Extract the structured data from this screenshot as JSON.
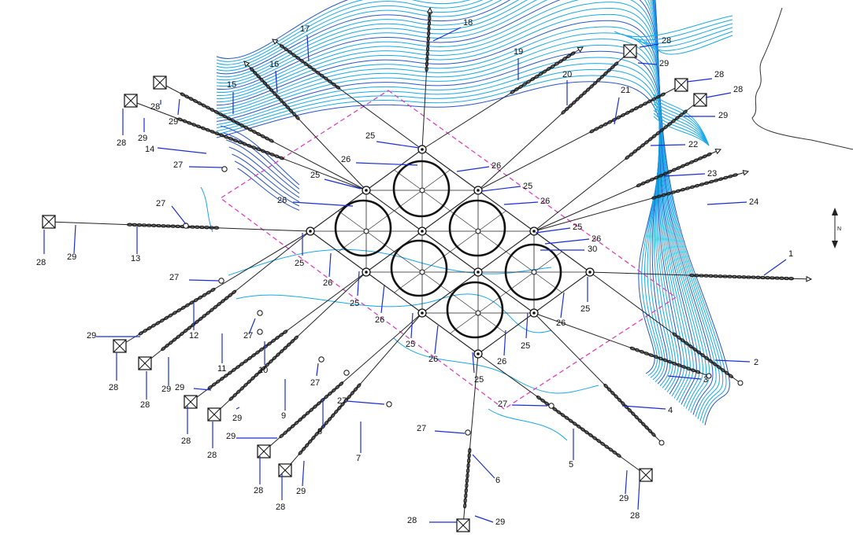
{
  "colors": {
    "contour": "#1aa8e8",
    "contour_dark": "#2a55c8",
    "line": "#222222",
    "chain": "#222222",
    "leader": "#1a2fd0",
    "boundary": "#e040c0",
    "pile_circle": "#111111"
  },
  "icons": {
    "anchor": "anchor-icon",
    "buoy": "buoy-icon",
    "connector": "connector-icon",
    "north_arrow": "north-arrow-icon"
  },
  "north_arrow": {
    "label": "N"
  },
  "mooring_lines": [
    {
      "id": "1",
      "label": "1"
    },
    {
      "id": "2",
      "label": "2"
    },
    {
      "id": "3",
      "label": "3"
    },
    {
      "id": "4",
      "label": "4"
    },
    {
      "id": "5",
      "label": "5"
    },
    {
      "id": "6",
      "label": "6"
    },
    {
      "id": "7",
      "label": "7"
    },
    {
      "id": "8",
      "label": "8"
    },
    {
      "id": "9",
      "label": "9"
    },
    {
      "id": "10",
      "label": "10"
    },
    {
      "id": "11",
      "label": "11"
    },
    {
      "id": "12",
      "label": "12"
    },
    {
      "id": "13",
      "label": "13"
    },
    {
      "id": "14",
      "label": "14"
    },
    {
      "id": "15",
      "label": "15"
    },
    {
      "id": "16",
      "label": "16"
    },
    {
      "id": "17",
      "label": "17"
    },
    {
      "id": "18",
      "label": "18"
    },
    {
      "id": "19",
      "label": "19"
    },
    {
      "id": "20",
      "label": "20"
    },
    {
      "id": "21",
      "label": "21"
    },
    {
      "id": "22",
      "label": "22"
    },
    {
      "id": "23",
      "label": "23"
    },
    {
      "id": "24",
      "label": "24"
    }
  ],
  "component_labels": {
    "node": "25",
    "connector": "26",
    "buoy": "27",
    "anchor": "28",
    "anchor_link": "29",
    "center": "30"
  }
}
